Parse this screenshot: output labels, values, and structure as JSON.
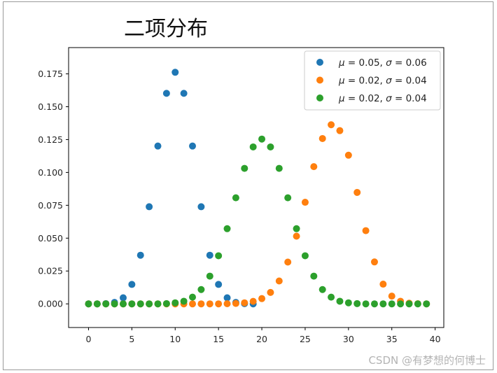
{
  "chart_data": {
    "type": "scatter",
    "title": "二项分布",
    "xlabel": "",
    "ylabel": "",
    "xlim": [
      -2.3,
      41.0
    ],
    "ylim": [
      -0.018,
      0.195
    ],
    "xticks": [
      0,
      5,
      10,
      15,
      20,
      25,
      30,
      35,
      40
    ],
    "yticks": [
      0.0,
      0.025,
      0.05,
      0.075,
      0.1,
      0.125,
      0.15,
      0.175
    ],
    "ytick_labels": [
      "0.000",
      "0.025",
      "0.050",
      "0.075",
      "0.100",
      "0.125",
      "0.150",
      "0.175"
    ],
    "grid": false,
    "legend_position": "top-right",
    "series": [
      {
        "name": "μ = 0.05,  σ = 0.06",
        "legend": {
          "mu_sym": "μ",
          "mu_val": " = 0.05,  ",
          "sigma_sym": "σ",
          "sigma_val": " = 0.06"
        },
        "color": "#1f77b4",
        "x": [
          0,
          1,
          2,
          3,
          4,
          5,
          6,
          7,
          8,
          9,
          10,
          11,
          12,
          13,
          14,
          15,
          16,
          17,
          18,
          19
        ],
        "y": [
          0.0,
          0.0,
          0.0002,
          0.0011,
          0.0046,
          0.0148,
          0.037,
          0.0739,
          0.1201,
          0.1602,
          0.1762,
          0.1602,
          0.1201,
          0.0739,
          0.037,
          0.0148,
          0.0046,
          0.0011,
          0.0002,
          0.0
        ]
      },
      {
        "name": "μ = 0.02,  σ = 0.04",
        "legend": {
          "mu_sym": "μ",
          "mu_val": " = 0.02,  ",
          "sigma_sym": "σ",
          "sigma_val": " = 0.04"
        },
        "color": "#ff7f0e",
        "x": [
          0,
          1,
          2,
          3,
          4,
          5,
          6,
          7,
          8,
          9,
          10,
          11,
          12,
          13,
          14,
          15,
          16,
          17,
          18,
          19,
          20,
          21,
          22,
          23,
          24,
          25,
          26,
          27,
          28,
          29,
          30,
          31,
          32,
          33,
          34,
          35,
          36,
          37,
          38,
          39
        ],
        "y": [
          0,
          0,
          0,
          0,
          0,
          0,
          0,
          0,
          0,
          0,
          0,
          0,
          0,
          0,
          0,
          0,
          0.0001,
          0.0003,
          0.0008,
          0.0019,
          0.004,
          0.0087,
          0.0174,
          0.0318,
          0.0515,
          0.0773,
          0.1044,
          0.1258,
          0.1363,
          0.1318,
          0.1131,
          0.0848,
          0.0557,
          0.0319,
          0.015,
          0.0059,
          0.002,
          0.0005,
          0.0001,
          0.0
        ]
      },
      {
        "name": "μ = 0.02,  σ = 0.04",
        "legend": {
          "mu_sym": "μ",
          "mu_val": " = 0.02,  ",
          "sigma_sym": "σ",
          "sigma_val": " = 0.04"
        },
        "color": "#2ca02c",
        "x": [
          0,
          1,
          2,
          3,
          4,
          5,
          6,
          7,
          8,
          9,
          10,
          11,
          12,
          13,
          14,
          15,
          16,
          17,
          18,
          19,
          20,
          21,
          22,
          23,
          24,
          25,
          26,
          27,
          28,
          29,
          30,
          31,
          32,
          33,
          34,
          35,
          36,
          37,
          38,
          39
        ],
        "y": [
          0,
          0,
          0,
          0,
          0,
          0,
          0,
          0,
          0,
          0.0002,
          0.0008,
          0.002,
          0.0051,
          0.0109,
          0.0211,
          0.0366,
          0.0572,
          0.0807,
          0.1031,
          0.1194,
          0.1254,
          0.1194,
          0.1031,
          0.0807,
          0.0572,
          0.0366,
          0.0211,
          0.0109,
          0.0051,
          0.002,
          0.0008,
          0.0002,
          0,
          0,
          0,
          0,
          0,
          0,
          0,
          0
        ]
      }
    ]
  },
  "watermark": "CSDN @有梦想的何博士"
}
